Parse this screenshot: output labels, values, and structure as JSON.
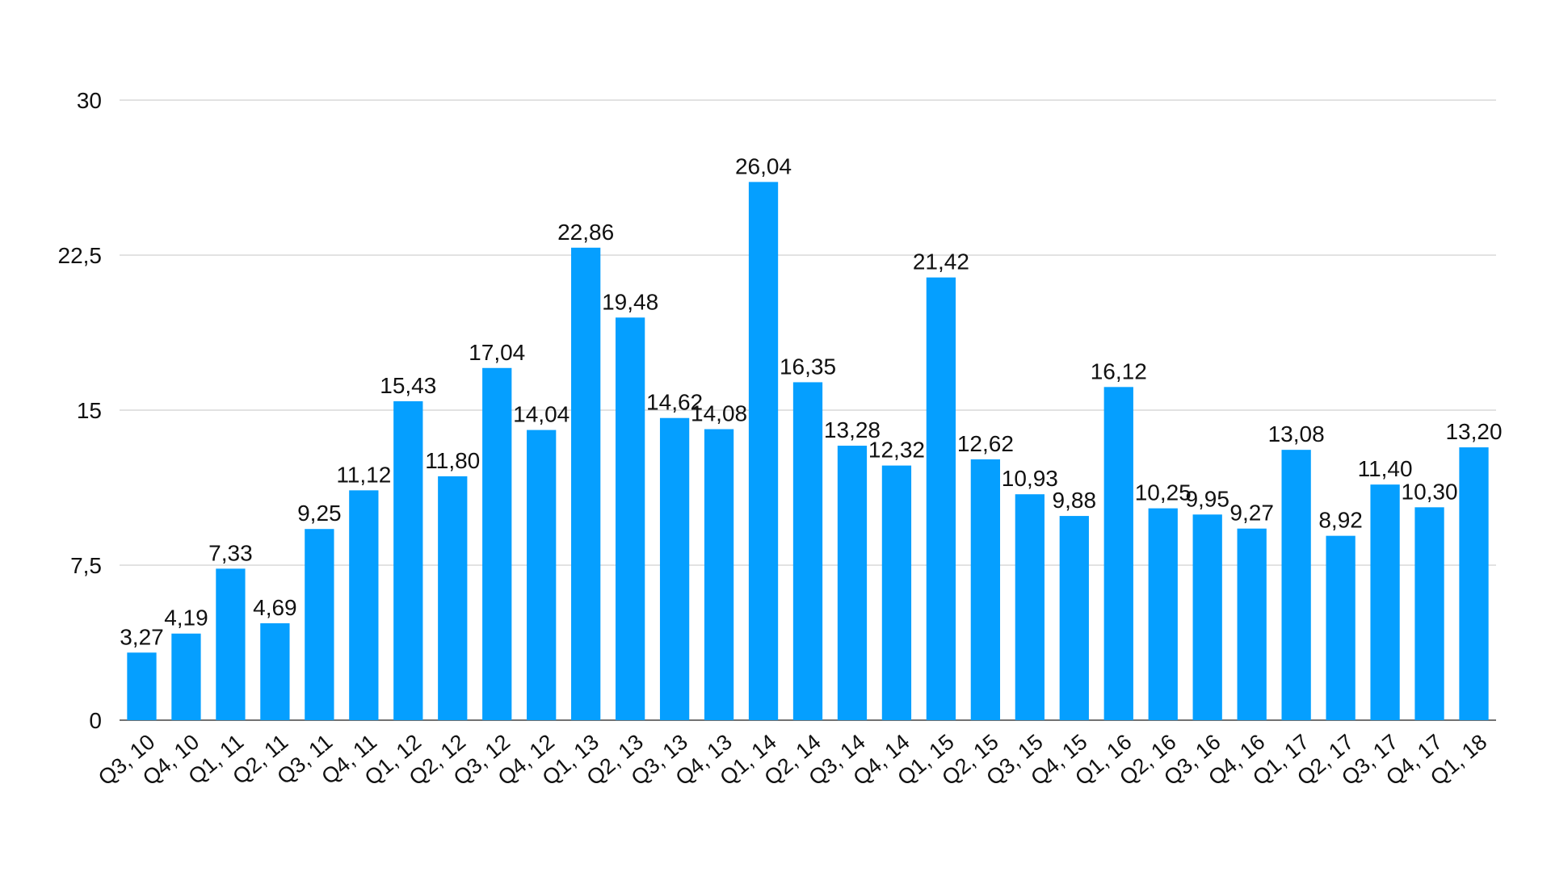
{
  "chart_data": {
    "type": "bar",
    "title": "",
    "xlabel": "",
    "ylabel": "",
    "ylim": [
      0,
      30
    ],
    "yticks": [
      0,
      7.5,
      15,
      22.5,
      30
    ],
    "ytick_labels": [
      "0",
      "7,5",
      "15",
      "22,5",
      "30"
    ],
    "grid": true,
    "color": "#059FFF",
    "categories": [
      "Q3, 10",
      "Q4, 10",
      "Q1, 11",
      "Q2, 11",
      "Q3, 11",
      "Q4, 11",
      "Q1, 12",
      "Q2, 12",
      "Q3, 12",
      "Q4, 12",
      "Q1, 13",
      "Q2, 13",
      "Q3, 13",
      "Q4, 13",
      "Q1, 14",
      "Q2, 14",
      "Q3, 14",
      "Q4, 14",
      "Q1, 15",
      "Q2, 15",
      "Q3, 15",
      "Q4, 15",
      "Q1, 16",
      "Q2, 16",
      "Q3, 16",
      "Q4, 16",
      "Q1, 17",
      "Q2, 17",
      "Q3, 17",
      "Q4, 17",
      "Q1, 18"
    ],
    "values": [
      3.27,
      4.19,
      7.33,
      4.69,
      9.25,
      11.12,
      15.43,
      11.8,
      17.04,
      14.04,
      22.86,
      19.48,
      14.62,
      14.08,
      26.04,
      16.35,
      13.28,
      12.32,
      21.42,
      12.62,
      10.93,
      9.88,
      16.12,
      10.25,
      9.95,
      9.27,
      13.08,
      8.92,
      11.4,
      10.3,
      13.2
    ],
    "value_labels": [
      "3,27",
      "4,19",
      "7,33",
      "4,69",
      "9,25",
      "11,12",
      "15,43",
      "11,80",
      "17,04",
      "14,04",
      "22,86",
      "19,48",
      "14,62",
      "14,08",
      "26,04",
      "16,35",
      "13,28",
      "12,32",
      "21,42",
      "12,62",
      "10,93",
      "9,88",
      "16,12",
      "10,25",
      "9,95",
      "9,27",
      "13,08",
      "8,92",
      "11,40",
      "10,30",
      "13,20"
    ]
  }
}
